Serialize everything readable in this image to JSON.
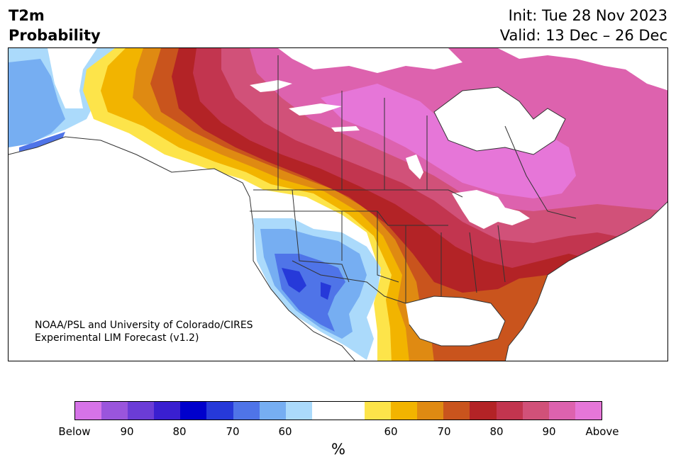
{
  "title": {
    "line1": "T2m",
    "line2": "Probability"
  },
  "header_right": {
    "init": "Init: Tue 28 Nov 2023",
    "valid": "Valid: 13 Dec – 26 Dec"
  },
  "credit": {
    "line1": "NOAA/PSL and University of Colorado/CIRES",
    "line2": "Experimental LIM Forecast (v1.2)"
  },
  "colorbar": {
    "unit": "%",
    "colors": [
      "#d673e8",
      "#9a55dc",
      "#6b3cd6",
      "#3a1fd0",
      "#0000cc",
      "#2639d9",
      "#4f74e8",
      "#76aef2",
      "#abdafb",
      "#ffffff",
      "#ffffff",
      "#fde44a",
      "#f2b400",
      "#df8a12",
      "#c9541d",
      "#b32326",
      "#c2354f",
      "#d15179",
      "#dd62ae",
      "#e676d8"
    ],
    "tick_labels": [
      "Below",
      "90",
      "80",
      "70",
      "60",
      "60",
      "70",
      "80",
      "90",
      "Above"
    ]
  },
  "map_colors": {
    "above_max": "#e676d8",
    "above_90": "#dd62ae",
    "above_85": "#d15179",
    "above_80": "#c2354f",
    "above_75": "#b32326",
    "above_70": "#c9541d",
    "above_65": "#df8a12",
    "above_60": "#f2b400",
    "above_55": "#fde44a",
    "below_60": "#abdafb",
    "below_65": "#76aef2",
    "below_70": "#4f74e8",
    "below_75": "#2639d9",
    "neutral": "#ffffff",
    "borders": "#333333"
  }
}
